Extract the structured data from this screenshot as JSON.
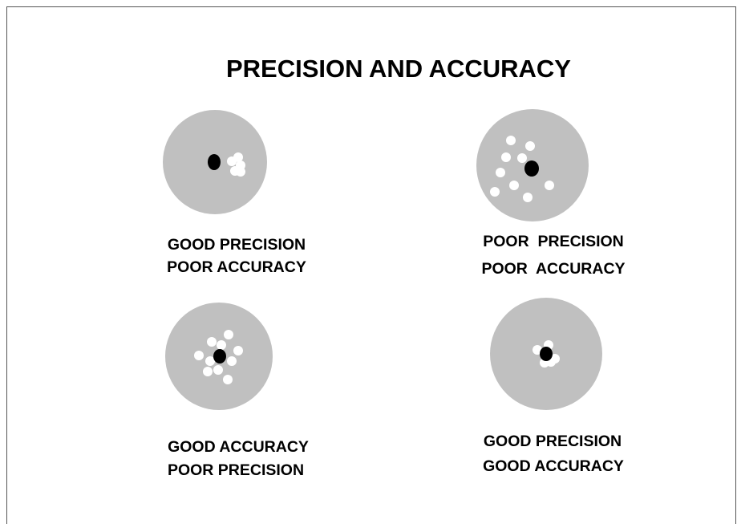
{
  "header": {
    "title": "PRECISION AND ACCURACY"
  },
  "panels": [
    {
      "lines": [
        "GOOD PRECISION",
        "POOR ACCURACY"
      ]
    },
    {
      "lines": [
        "POOR  PRECISION",
        "POOR  ACCURACY"
      ]
    },
    {
      "lines": [
        "GOOD ACCURACY",
        "POOR PRECISION"
      ]
    },
    {
      "lines": [
        "GOOD PRECISION",
        "GOOD ACCURACY"
      ]
    }
  ]
}
